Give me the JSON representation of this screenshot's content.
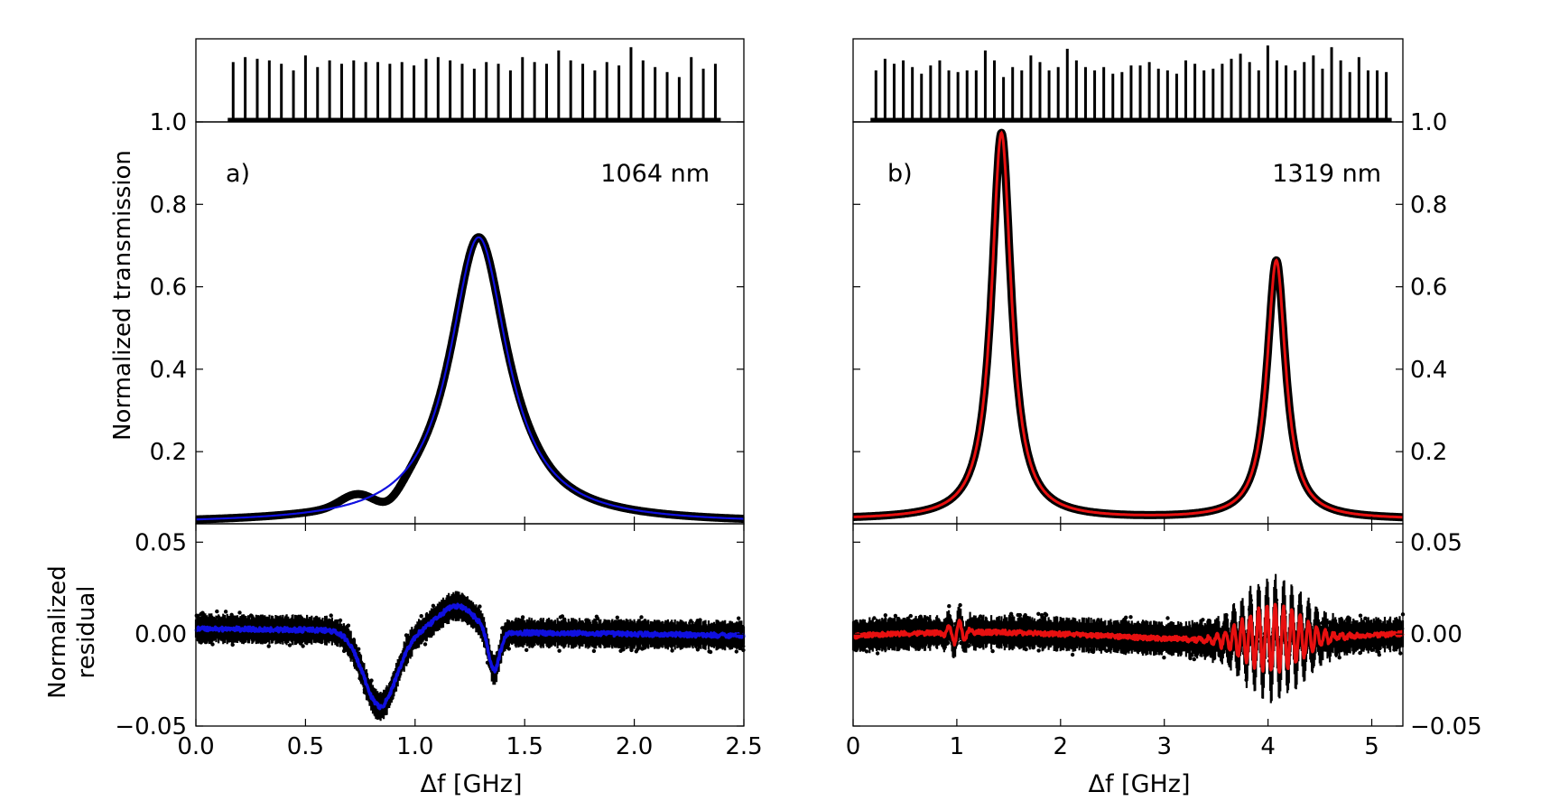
{
  "figure": {
    "shared_ylabel_transmission": "Normalized transmission",
    "shared_ylabel_residual_line1": "Normalized",
    "shared_ylabel_residual_line2": "residual"
  },
  "colors": {
    "data": "#000000",
    "fit_a": "#1010e0",
    "fit_b": "#e81010"
  },
  "chart_data": [
    {
      "id": "a",
      "type": "line",
      "panel_label": "a)",
      "wavelength_label": "1064 nm",
      "xlabel": "Δf [GHz]",
      "xlim": [
        0,
        2.5
      ],
      "xticks": [
        0,
        0.5,
        1.0,
        1.5,
        2.0,
        2.5
      ],
      "xtick_labels": [
        "0.0",
        "0.5",
        "1.0",
        "1.5",
        "2.0",
        "2.5"
      ],
      "markers": {
        "count": 41,
        "x_start": 0.17,
        "x_end": 2.37,
        "heights": [
          0.72,
          0.78,
          0.76,
          0.74,
          0.7,
          0.62,
          0.8,
          0.66,
          0.74,
          0.7,
          0.74,
          0.72,
          0.72,
          0.7,
          0.72,
          0.68,
          0.76,
          0.78,
          0.74,
          0.7,
          0.64,
          0.72,
          0.7,
          0.62,
          0.78,
          0.72,
          0.7,
          0.86,
          0.74,
          0.7,
          0.62,
          0.72,
          0.68,
          0.9,
          0.74,
          0.66,
          0.6,
          0.54,
          0.78,
          0.64,
          0.7
        ]
      },
      "transmission": {
        "ylim": [
          0.025,
          1.0
        ],
        "yticks": [
          0.2,
          0.4,
          0.6,
          0.8,
          1.0
        ],
        "ytick_labels": [
          "0.2",
          "0.4",
          "0.6",
          "0.8",
          "1.0"
        ],
        "fit": {
          "name": "fit",
          "peak_x": 1.29,
          "peak_y": 0.72,
          "hwhm": 0.16,
          "baseline": 0.025,
          "slope": 0.0
        },
        "data_bump": {
          "x": 0.72,
          "y": 0.06,
          "width": 0.11
        }
      },
      "residual": {
        "ylim": [
          -0.05,
          0.06
        ],
        "yticks": [
          -0.05,
          0.0,
          0.05
        ],
        "ytick_labels": [
          "−0.05",
          "0.00",
          "0.05"
        ],
        "features": [
          {
            "x": 0.84,
            "amp": -0.041,
            "width": 0.075
          },
          {
            "x": 1.19,
            "amp": 0.014,
            "width": 0.08
          },
          {
            "x": 1.36,
            "amp": -0.022,
            "width": 0.025
          }
        ],
        "noise_amp": 0.006
      }
    },
    {
      "id": "b",
      "type": "line",
      "panel_label": "b)",
      "wavelength_label": "1319 nm",
      "xlabel": "Δf [GHz]",
      "xlim": [
        0,
        5.3
      ],
      "xticks": [
        0,
        1,
        2,
        3,
        4,
        5
      ],
      "xtick_labels": [
        "0",
        "1",
        "2",
        "3",
        "4",
        "5"
      ],
      "markers": {
        "count": 57,
        "x_start": 0.22,
        "x_end": 5.14,
        "heights": [
          0.62,
          0.76,
          0.7,
          0.74,
          0.66,
          0.58,
          0.68,
          0.74,
          0.62,
          0.6,
          0.62,
          0.62,
          0.86,
          0.74,
          0.54,
          0.66,
          0.62,
          0.8,
          0.72,
          0.62,
          0.66,
          0.88,
          0.74,
          0.66,
          0.62,
          0.66,
          0.58,
          0.6,
          0.68,
          0.68,
          0.72,
          0.64,
          0.62,
          0.58,
          0.74,
          0.7,
          0.62,
          0.64,
          0.7,
          0.76,
          0.82,
          0.72,
          0.62,
          0.92,
          0.74,
          0.68,
          0.62,
          0.72,
          0.8,
          0.64,
          0.9,
          0.74,
          0.6,
          0.78,
          0.62,
          0.62,
          0.6
        ]
      },
      "transmission": {
        "ylim": [
          0.025,
          1.0
        ],
        "yticks": [
          0.2,
          0.4,
          0.6,
          0.8,
          1.0
        ],
        "ytick_labels": [
          "0.2",
          "0.4",
          "0.6",
          "0.8",
          "1.0"
        ],
        "fit_peaks": [
          {
            "x": 1.43,
            "y": 0.955,
            "hwhm": 0.115
          },
          {
            "x": 4.08,
            "y": 0.645,
            "hwhm": 0.11
          }
        ],
        "baseline": 0.035
      },
      "residual": {
        "ylim": [
          -0.05,
          0.06
        ],
        "yticks": [
          -0.05,
          0.0,
          0.05
        ],
        "ytick_labels": [
          "−0.05",
          "0.00",
          "0.05"
        ],
        "oscillation": {
          "center": 4.05,
          "width": 0.28,
          "amp": 0.018,
          "period": 0.08
        },
        "noise_amp": 0.007
      }
    }
  ]
}
